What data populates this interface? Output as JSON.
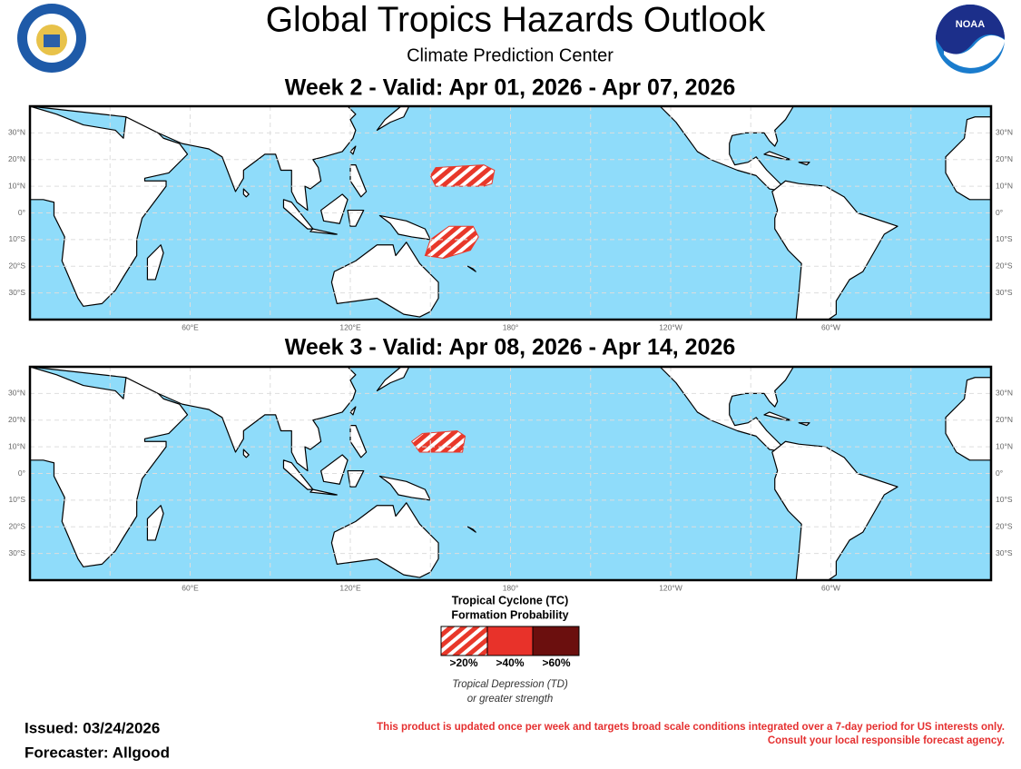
{
  "header": {
    "title": "Global Tropics Hazards Outlook",
    "subtitle": "Climate Prediction Center",
    "noaa_logo_text": "NOAA"
  },
  "maps": [
    {
      "title": "Week 2 - Valid: Apr 01, 2026 - Apr 07, 2026"
    },
    {
      "title": "Week 3 - Valid: Apr 08, 2026 - Apr 14, 2026"
    }
  ],
  "lat_labels": [
    "30°N",
    "20°N",
    "10°N",
    "0°",
    "10°S",
    "20°S",
    "30°S"
  ],
  "lon_labels": [
    "60°E",
    "120°E",
    "180°",
    "120°W",
    "60°W"
  ],
  "legend": {
    "title_lines": [
      "Tropical Cyclone (TC)",
      "Formation Probability"
    ],
    "items": [
      ">20%",
      ">40%",
      ">60%"
    ],
    "note_lines": [
      "Tropical Depression (TD)",
      "or greater strength"
    ]
  },
  "footer": {
    "issued": "Issued: 03/24/2026",
    "forecaster": "Forecaster: Allgood",
    "disclaimer_lines": [
      "This product is updated once per week and targets broad scale conditions integrated over a 7-day period for US interests only.",
      "Consult your local responsible forecast agency."
    ]
  }
}
